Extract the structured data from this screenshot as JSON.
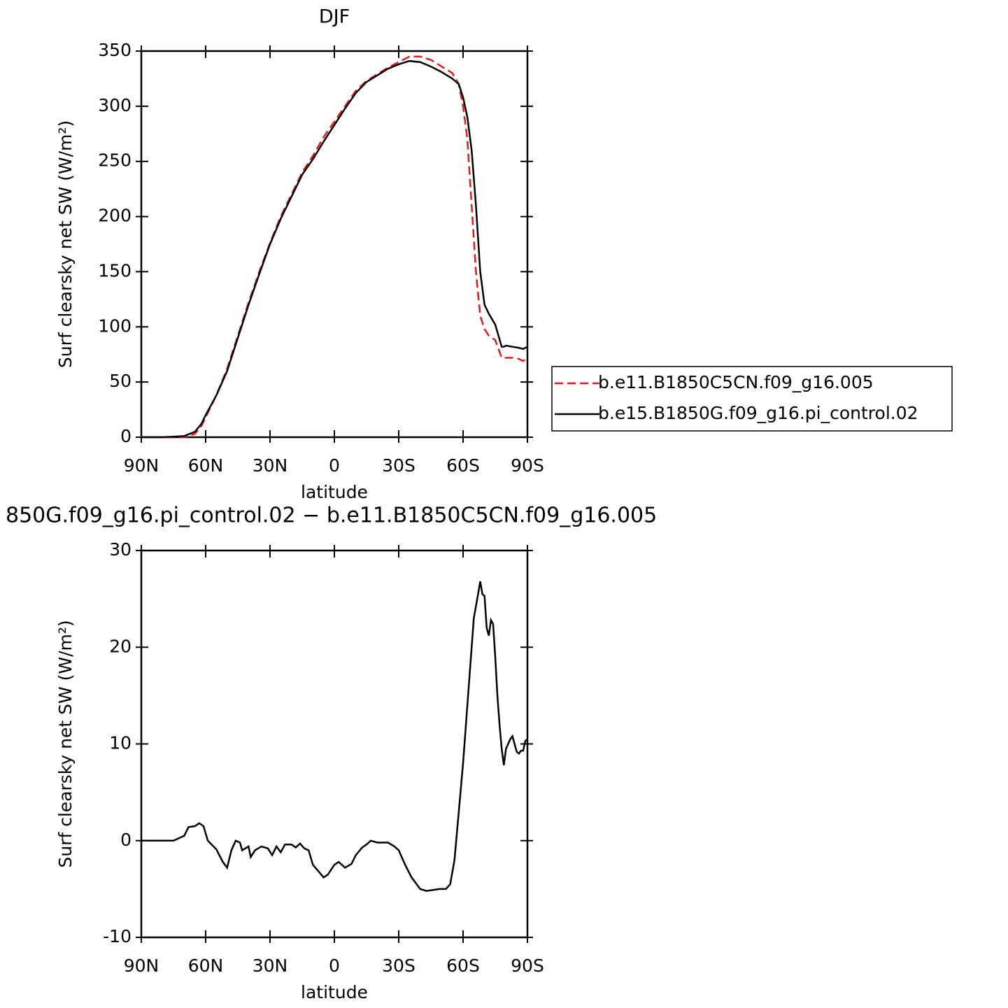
{
  "chart_data": [
    {
      "type": "line",
      "title": "DJF",
      "xlabel": "latitude",
      "ylabel": "Surf clearsky net SW (W/m²)",
      "x": [
        90,
        80,
        70,
        65,
        62,
        60,
        55,
        50,
        45,
        40,
        35,
        30,
        25,
        20,
        15,
        10,
        5,
        0,
        -5,
        -10,
        -15,
        -20,
        -25,
        -30,
        -35,
        -40,
        -45,
        -50,
        -55,
        -58,
        -60,
        -62,
        -64,
        -66,
        -68,
        -70,
        -72,
        -75,
        -78,
        -79,
        -80,
        -83,
        -86,
        -88,
        -90
      ],
      "series": [
        {
          "name": "b.e11.B1850C5CN.f09_g16.005",
          "color": "#e41a1c",
          "linestyle": "dashed",
          "values": [
            0,
            0,
            0,
            3,
            10,
            18,
            38,
            62,
            92,
            122,
            150,
            176,
            200,
            220,
            240,
            255,
            272,
            286,
            300,
            314,
            323,
            329,
            335,
            340,
            345,
            345,
            342,
            336,
            330,
            320,
            300,
            270,
            210,
            150,
            110,
            98,
            92,
            88,
            72,
            72,
            72,
            72,
            71,
            69,
            72
          ]
        },
        {
          "name": "b.e15.B1850G.f09_g16.pi_control.02",
          "color": "#000000",
          "linestyle": "solid",
          "values": [
            0,
            0,
            1,
            5,
            12,
            20,
            38,
            60,
            90,
            120,
            148,
            175,
            198,
            218,
            238,
            252,
            268,
            283,
            298,
            312,
            322,
            328,
            334,
            338,
            341,
            340,
            336,
            331,
            325,
            320,
            308,
            290,
            260,
            210,
            150,
            120,
            112,
            102,
            82,
            82,
            83,
            82,
            81,
            80,
            82
          ]
        }
      ],
      "xlim": [
        90,
        -90
      ],
      "xticks": [
        {
          "value": 90,
          "label": "90N"
        },
        {
          "value": 60,
          "label": "60N"
        },
        {
          "value": 30,
          "label": "30N"
        },
        0,
        {
          "value": -30,
          "label": "30S"
        },
        {
          "value": -60,
          "label": "60S"
        },
        {
          "value": -90,
          "label": "90S"
        }
      ],
      "ylim": [
        0,
        350
      ],
      "yticks": [
        0,
        50,
        100,
        150,
        200,
        250,
        300,
        350
      ],
      "legend": "right"
    },
    {
      "type": "line",
      "title": "850G.f09_g16.pi_control.02 − b.e11.B1850C5CN.f09_g16.005",
      "xlabel": "latitude",
      "ylabel": "Surf clearsky net SW (W/m²)",
      "x": [
        90,
        75,
        70,
        68,
        65,
        63,
        61,
        59,
        55,
        52,
        50,
        48,
        46,
        44,
        43,
        40,
        39,
        37,
        34,
        31,
        29,
        27,
        25,
        23,
        20,
        18,
        16,
        14,
        12,
        10,
        5,
        3,
        0,
        -2,
        -5,
        -8,
        -10,
        -13,
        -15,
        -17,
        -20,
        -23,
        -25,
        -28,
        -30,
        -33,
        -36,
        -40,
        -43,
        -46,
        -49,
        -52,
        -54,
        -56,
        -58,
        -60,
        -62,
        -64,
        -65,
        -67,
        -68,
        -69,
        -70,
        -71,
        -72,
        -73,
        -74,
        -75,
        -76,
        -77,
        -78,
        -79,
        -80,
        -82,
        -83,
        -84,
        -85,
        -86,
        -87,
        -88,
        -89,
        -90
      ],
      "color": "#000000",
      "values": [
        0,
        0,
        0.5,
        1.4,
        1.5,
        1.8,
        1.5,
        0,
        -0.9,
        -2.2,
        -2.8,
        -1,
        0,
        -0.2,
        -1,
        -0.6,
        -1.7,
        -1,
        -0.6,
        -0.8,
        -1.5,
        -0.6,
        -1.2,
        -0.4,
        -0.4,
        -0.7,
        -0.3,
        -0.8,
        -1,
        -2.5,
        -3.8,
        -3.5,
        -2.5,
        -2.2,
        -2.8,
        -2.4,
        -1.5,
        -0.7,
        -0.4,
        0,
        -0.2,
        -0.2,
        -0.2,
        -0.6,
        -1,
        -2.5,
        -3.8,
        -5,
        -5.2,
        -5.1,
        -5,
        -5,
        -4.5,
        -2,
        3,
        8,
        14,
        20,
        23,
        25.5,
        26.8,
        25.5,
        25.3,
        22,
        21.2,
        22.8,
        22.4,
        19,
        15,
        12,
        9.5,
        7.8,
        9.5,
        10.5,
        10.8,
        10,
        9.2,
        9,
        9.3,
        9.3,
        10.3,
        10.5
      ],
      "xlim": [
        90,
        -90
      ],
      "xticks": [
        {
          "value": 90,
          "label": "90N"
        },
        {
          "value": 60,
          "label": "60N"
        },
        {
          "value": 30,
          "label": "30N"
        },
        0,
        {
          "value": -30,
          "label": "30S"
        },
        {
          "value": -60,
          "label": "60S"
        },
        {
          "value": -90,
          "label": "90S"
        }
      ],
      "ylim": [
        -10,
        30
      ],
      "yticks": [
        -10,
        0,
        10,
        20,
        30
      ]
    }
  ]
}
